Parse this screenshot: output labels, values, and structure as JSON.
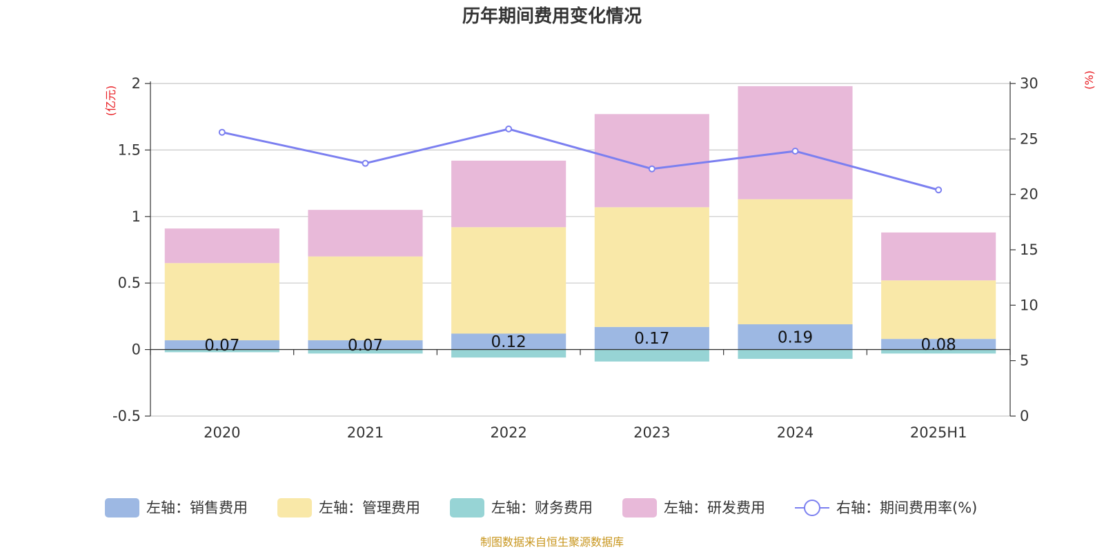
{
  "chart_data": {
    "type": "bar",
    "stacked": true,
    "title": "历年期间费用变化情况",
    "categories": [
      "2020",
      "2021",
      "2022",
      "2023",
      "2024",
      "2025H1"
    ],
    "left_axis": {
      "unit": "(亿元)",
      "ylim": [
        -0.5,
        2
      ],
      "ticks": [
        "-0.5",
        "0",
        "0.5",
        "1",
        "1.5",
        "2"
      ]
    },
    "right_axis": {
      "unit": "(%)",
      "ylim": [
        0,
        30
      ],
      "ticks": [
        "0",
        "5",
        "10",
        "15",
        "20",
        "25",
        "30"
      ]
    },
    "series": [
      {
        "name": "左轴：销售费用",
        "type": "bar",
        "axis": "left",
        "color": "#9db8e3",
        "values": [
          0.07,
          0.07,
          0.12,
          0.17,
          0.19,
          0.08
        ],
        "labels": [
          "0.07",
          "0.07",
          "0.12",
          "0.17",
          "0.19",
          "0.08"
        ]
      },
      {
        "name": "左轴：管理费用",
        "type": "bar",
        "axis": "left",
        "color": "#f9e8a8",
        "values": [
          0.58,
          0.63,
          0.8,
          0.9,
          0.94,
          0.44
        ]
      },
      {
        "name": "左轴：财务费用",
        "type": "bar",
        "axis": "left",
        "color": "#97d4d5",
        "values": [
          -0.02,
          -0.03,
          -0.06,
          -0.09,
          -0.07,
          -0.03
        ]
      },
      {
        "name": "左轴：研发费用",
        "type": "bar",
        "axis": "left",
        "color": "#e8b9d9",
        "values": [
          0.26,
          0.35,
          0.5,
          0.7,
          0.85,
          0.36
        ]
      },
      {
        "name": "右轴：期间费用率(%)",
        "type": "line",
        "axis": "right",
        "color": "#7b7ff0",
        "values": [
          25.6,
          22.8,
          25.9,
          22.3,
          23.9,
          20.4
        ]
      }
    ],
    "grid": true,
    "legend_position": "bottom",
    "source": "制图数据来自恒生聚源数据库"
  }
}
